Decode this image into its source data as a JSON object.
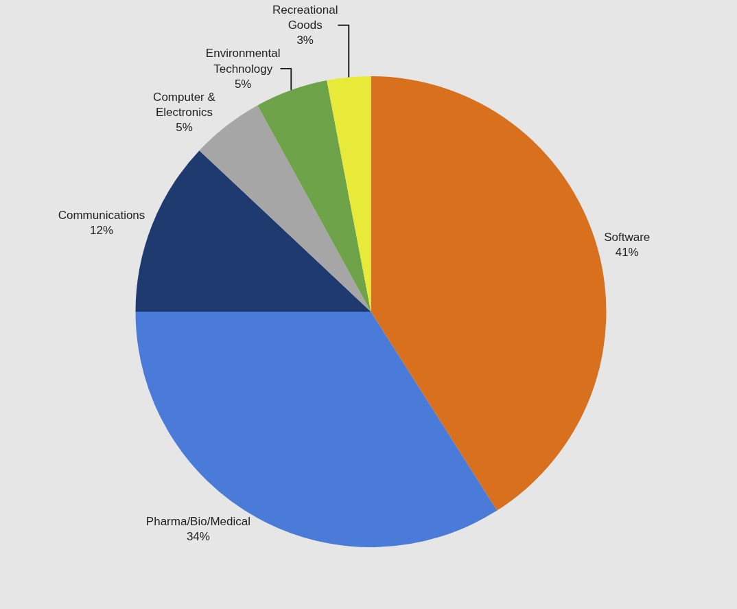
{
  "chart_data": {
    "type": "pie",
    "categories": [
      "Software",
      "Pharma/Bio/Medical",
      "Communications",
      "Computer & Electronics",
      "Environmental Technology",
      "Recreational Goods"
    ],
    "values": [
      41,
      34,
      12,
      5,
      5,
      3
    ],
    "value_labels": [
      "41%",
      "34%",
      "12%",
      "5%",
      "5%",
      "3%"
    ],
    "colors": [
      "#d9701e",
      "#4a7bd8",
      "#1f3a6e",
      "#a6a6a6",
      "#6fa34a",
      "#e8ea3a"
    ],
    "legend": false
  }
}
